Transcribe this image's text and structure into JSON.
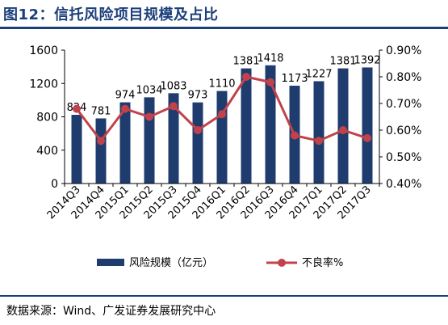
{
  "figure": {
    "title": "图12：信托风险项目规模及占比",
    "source": "数据来源：Wind、广发证券发展研究中心"
  },
  "colors": {
    "bar": "#1f3c6e",
    "line": "#c1424a",
    "axis": "#000000",
    "title": "#1b3f7a"
  },
  "chart_data": {
    "type": "bar",
    "title": "",
    "categories": [
      "2014Q3",
      "2014Q4",
      "2015Q1",
      "2015Q2",
      "2015Q3",
      "2015Q4",
      "2016Q1",
      "2016Q2",
      "2016Q3",
      "2016Q4",
      "2017Q1",
      "2017Q2",
      "2017Q3"
    ],
    "series": [
      {
        "name": "风险规模（亿元）",
        "type": "bar",
        "axis": "left",
        "values": [
          824,
          781,
          974,
          1034,
          1083,
          973,
          1110,
          1381,
          1418,
          1173,
          1227,
          1381,
          1392
        ],
        "labels": [
          "824",
          "781",
          "974",
          "1034",
          "1083",
          "973",
          "1110",
          "1381",
          "1418",
          "1173",
          "1227",
          "1381",
          "1392"
        ]
      },
      {
        "name": "不良率%",
        "type": "line",
        "axis": "right",
        "values": [
          0.68,
          0.56,
          0.68,
          0.65,
          0.69,
          0.6,
          0.66,
          0.8,
          0.78,
          0.58,
          0.56,
          0.6,
          0.57
        ]
      }
    ],
    "y_left": {
      "min": 0,
      "max": 1600,
      "ticks": [
        0,
        400,
        800,
        1200,
        1600
      ],
      "tick_labels": [
        "0",
        "400",
        "800",
        "1200",
        "1600"
      ]
    },
    "y_right": {
      "min": 0.4,
      "max": 0.9,
      "ticks": [
        0.4,
        0.5,
        0.6,
        0.7,
        0.8,
        0.9
      ],
      "tick_labels": [
        "0.40%",
        "0.50%",
        "0.60%",
        "0.70%",
        "0.80%",
        "0.90%"
      ]
    },
    "grid": false,
    "legend_position": "bottom"
  }
}
